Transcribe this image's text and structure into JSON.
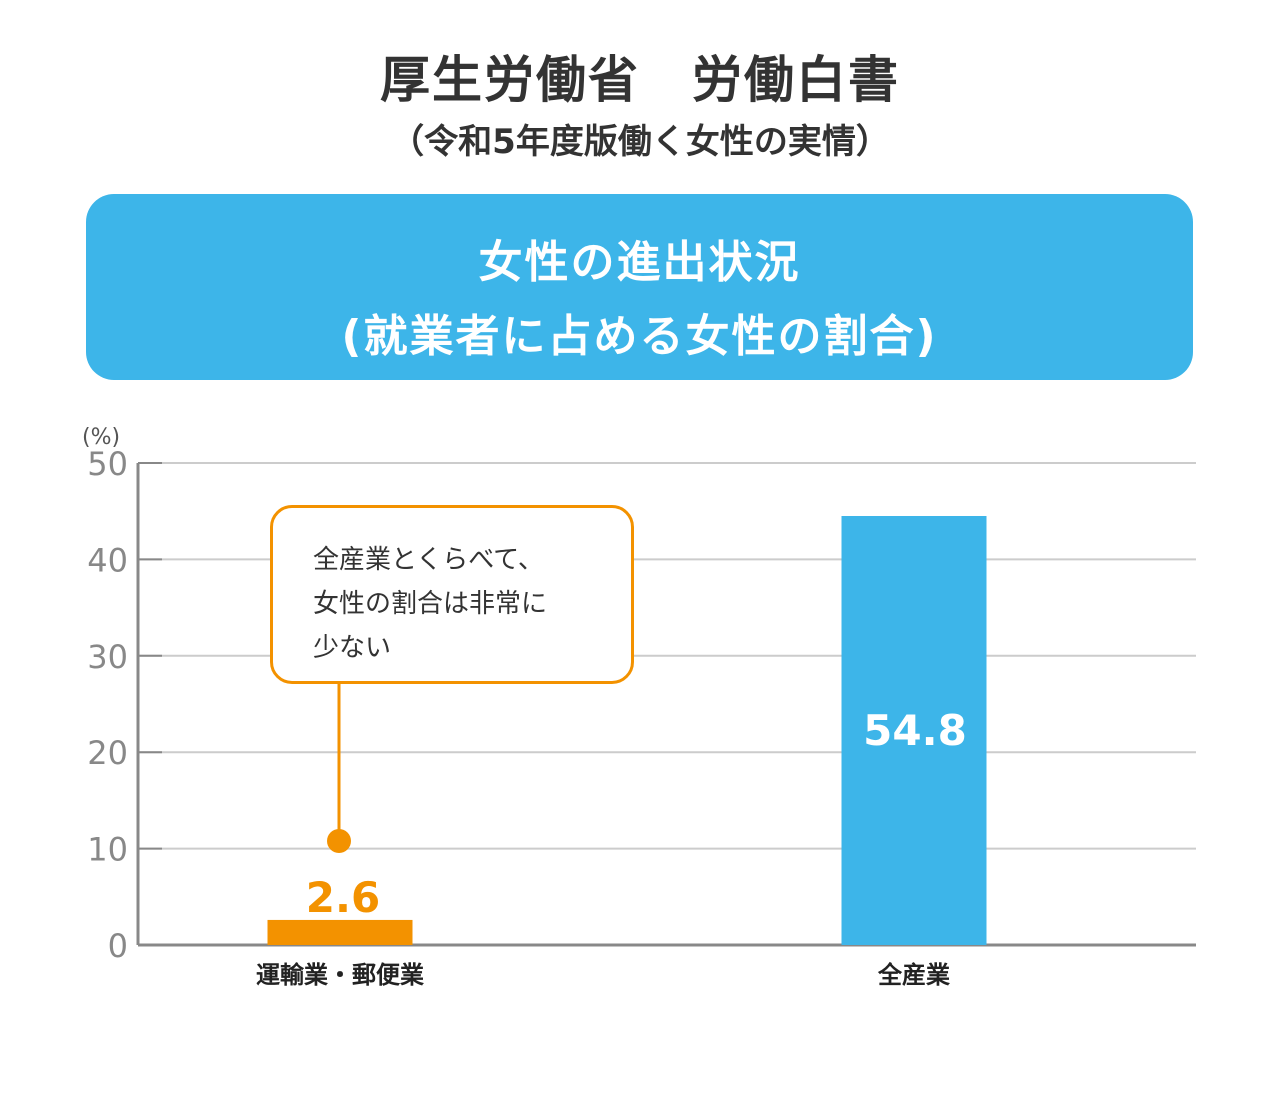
{
  "header": {
    "title": "厚生労働省　労働白書",
    "subtitle": "（令和5年度版働く女性の実情）"
  },
  "banner": {
    "line1": "女性の進出状況",
    "line2": "(就業者に占める女性の割合)"
  },
  "callout": {
    "lines": [
      "全産業とくらべて、",
      "女性の割合は非常に",
      "少ない"
    ]
  },
  "colors": {
    "accent_blue": "#3db5e9",
    "highlight_orange": "#f39200",
    "axis_gray": "#888888",
    "grid_gray": "#cccccc"
  },
  "chart_data": {
    "type": "bar",
    "title": "",
    "unit_label": "(%)",
    "categories": [
      "運輸業・郵便業",
      "全産業"
    ],
    "values": [
      2.6,
      54.8
    ],
    "value_labels": [
      "2.6",
      "54.8"
    ],
    "bar_colors": [
      "#f39200",
      "#3db5e9"
    ],
    "y_ticks": [
      0,
      10,
      20,
      30,
      40,
      50
    ],
    "ylim": [
      0,
      50
    ],
    "grid": true,
    "xlabel": "",
    "ylabel": ""
  }
}
